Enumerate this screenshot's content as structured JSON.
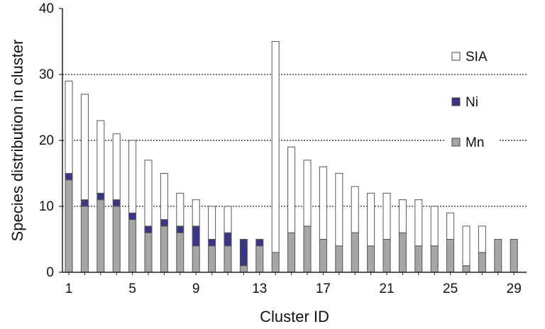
{
  "chart_data": {
    "type": "bar",
    "stacked": true,
    "title": "",
    "xlabel": "Cluster ID",
    "ylabel": "Species distribution in cluster",
    "ylim": [
      0,
      40
    ],
    "yticks": [
      0,
      10,
      20,
      30,
      40
    ],
    "xtick_labels": [
      "1",
      "5",
      "9",
      "13",
      "17",
      "21",
      "25",
      "29"
    ],
    "categories": [
      "1",
      "2",
      "3",
      "4",
      "5",
      "6",
      "7",
      "8",
      "9",
      "10",
      "11",
      "12",
      "13",
      "14",
      "15",
      "16",
      "17",
      "18",
      "19",
      "20",
      "21",
      "22",
      "23",
      "24",
      "25",
      "26",
      "27",
      "28",
      "29"
    ],
    "grid": "horizontal dashed at 10, 20, 30",
    "legend_position": "right",
    "series": [
      {
        "name": "Mn",
        "color": "#a6a6a6",
        "values": [
          14,
          10,
          11,
          10,
          8,
          6,
          7,
          6,
          4,
          4,
          4,
          1,
          4,
          3,
          6,
          7,
          5,
          4,
          6,
          4,
          5,
          6,
          4,
          4,
          5,
          1,
          3,
          5,
          5
        ]
      },
      {
        "name": "Ni",
        "color": "#3a3585",
        "values": [
          1,
          1,
          1,
          1,
          1,
          1,
          1,
          1,
          3,
          1,
          2,
          4,
          1,
          0,
          0,
          0,
          0,
          0,
          0,
          0,
          0,
          0,
          0,
          0,
          0,
          0,
          0,
          0,
          0
        ]
      },
      {
        "name": "SIA",
        "color": "#ffffff",
        "values": [
          14,
          16,
          11,
          10,
          11,
          10,
          7,
          5,
          4,
          5,
          4,
          0,
          0,
          32,
          13,
          10,
          11,
          11,
          7,
          8,
          7,
          5,
          7,
          6,
          4,
          6,
          4,
          0,
          0
        ]
      }
    ],
    "legend_order": [
      "SIA",
      "Ni",
      "Mn"
    ]
  }
}
